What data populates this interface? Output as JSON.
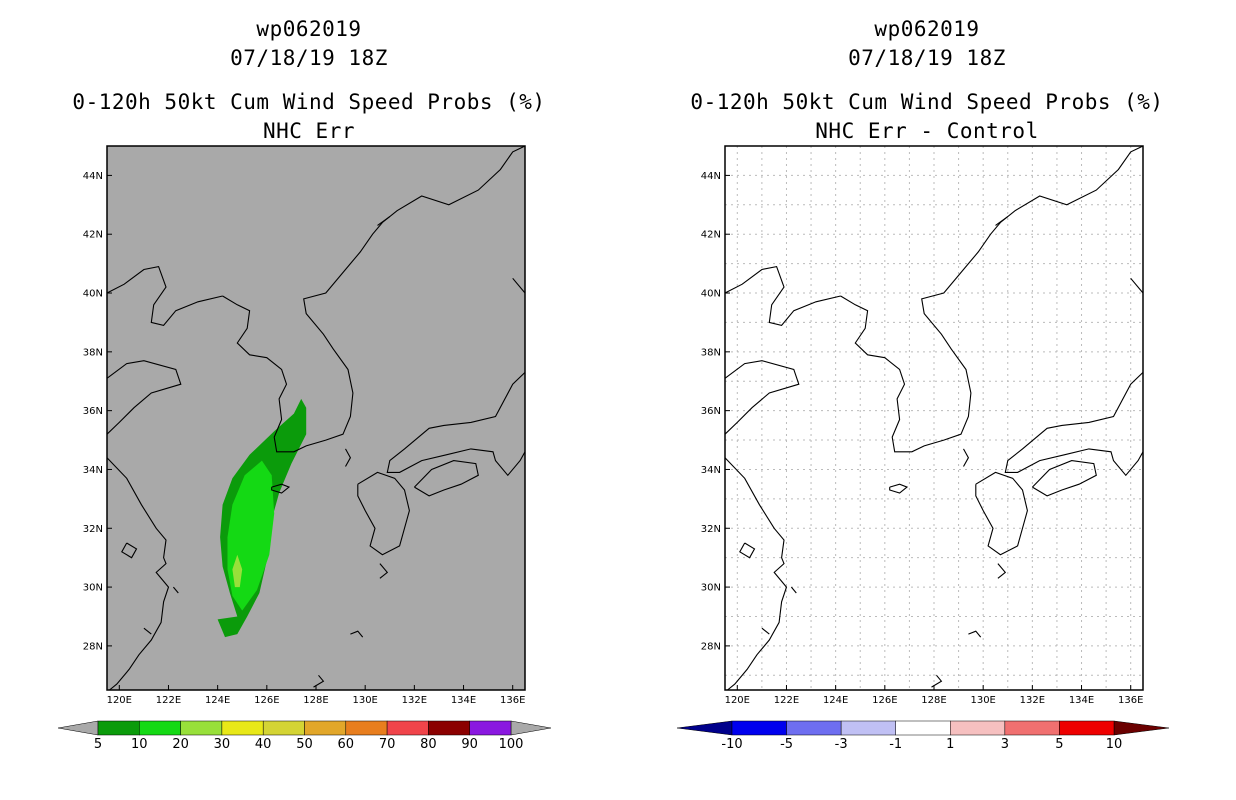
{
  "left_panel": {
    "title_line1": "wp062019",
    "title_line2": "07/18/19 18Z",
    "title_line3": "0-120h 50kt Cum Wind Speed Probs (%)",
    "title_line4": "NHC Err",
    "background_color": "#a9a9a9",
    "colorbar": {
      "labels": [
        "5",
        "10",
        "20",
        "30",
        "40",
        "50",
        "60",
        "70",
        "80",
        "90",
        "100"
      ],
      "colors": [
        "#0b9b0b",
        "#14d914",
        "#98e03a",
        "#e8e818",
        "#d4d434",
        "#e2a72a",
        "#e87e1e",
        "#f0444a",
        "#8b0000",
        "#8a18e0"
      ],
      "end_color": "#a9a9a9"
    }
  },
  "right_panel": {
    "title_line1": "wp062019",
    "title_line2": "07/18/19 18Z",
    "title_line3": "0-120h 50kt Cum Wind Speed Probs (%)",
    "title_line4": "NHC Err - Control",
    "background_color": "#ffffff",
    "colorbar": {
      "labels": [
        "-10",
        "-5",
        "-3",
        "-1",
        "1",
        "3",
        "5",
        "10"
      ],
      "colors": [
        "#0000ee",
        "#6e6ef0",
        "#c0c0f4",
        "#ffffff",
        "#f6c0c0",
        "#f07070",
        "#ee0000"
      ],
      "end_left_color": "#00008b",
      "end_right_color": "#6b0000"
    }
  },
  "axes": {
    "lat_labels": [
      "28N",
      "30N",
      "32N",
      "34N",
      "36N",
      "38N",
      "40N",
      "42N",
      "44N"
    ],
    "lon_labels": [
      "120E",
      "122E",
      "124E",
      "126E",
      "128E",
      "130E",
      "132E",
      "134E",
      "136E"
    ]
  },
  "map_data": {
    "extent": {
      "lon": [
        119.5,
        136.5
      ],
      "lat": [
        26.5,
        45.0
      ]
    },
    "probability_contours": [
      {
        "level": "5-10%",
        "color": "#0b9b0b",
        "points": [
          [
            124.8,
            29
          ],
          [
            124.5,
            29.8
          ],
          [
            124.2,
            30.7
          ],
          [
            124.1,
            31.7
          ],
          [
            124.2,
            32.8
          ],
          [
            124.6,
            33.7
          ],
          [
            125.3,
            34.5
          ],
          [
            126.3,
            35.3
          ],
          [
            127.1,
            35.9
          ],
          [
            127.4,
            36.4
          ],
          [
            127.6,
            36.1
          ],
          [
            127.6,
            35.2
          ],
          [
            127.0,
            34.2
          ],
          [
            126.5,
            33.2
          ],
          [
            126.1,
            32.0
          ],
          [
            126.0,
            30.9
          ],
          [
            125.7,
            29.8
          ],
          [
            125.2,
            29.0
          ],
          [
            124.8,
            28.4
          ],
          [
            124.3,
            28.3
          ],
          [
            124.0,
            28.9
          ]
        ],
        "seed_note": "outer 5% band"
      },
      {
        "level": "10-20%",
        "color": "#14d914",
        "points": [
          [
            124.6,
            29.7
          ],
          [
            124.4,
            30.6
          ],
          [
            124.4,
            31.7
          ],
          [
            124.6,
            32.8
          ],
          [
            125.1,
            33.8
          ],
          [
            125.8,
            34.3
          ],
          [
            126.2,
            33.8
          ],
          [
            126.3,
            32.5
          ],
          [
            126.1,
            31.1
          ],
          [
            125.6,
            29.9
          ],
          [
            125.0,
            29.2
          ]
        ]
      },
      {
        "level": "20-30%",
        "color": "#98e03a",
        "points": [
          [
            124.7,
            30.0
          ],
          [
            124.6,
            30.6
          ],
          [
            124.8,
            31.1
          ],
          [
            125.0,
            30.6
          ],
          [
            124.9,
            30.0
          ]
        ]
      }
    ]
  }
}
